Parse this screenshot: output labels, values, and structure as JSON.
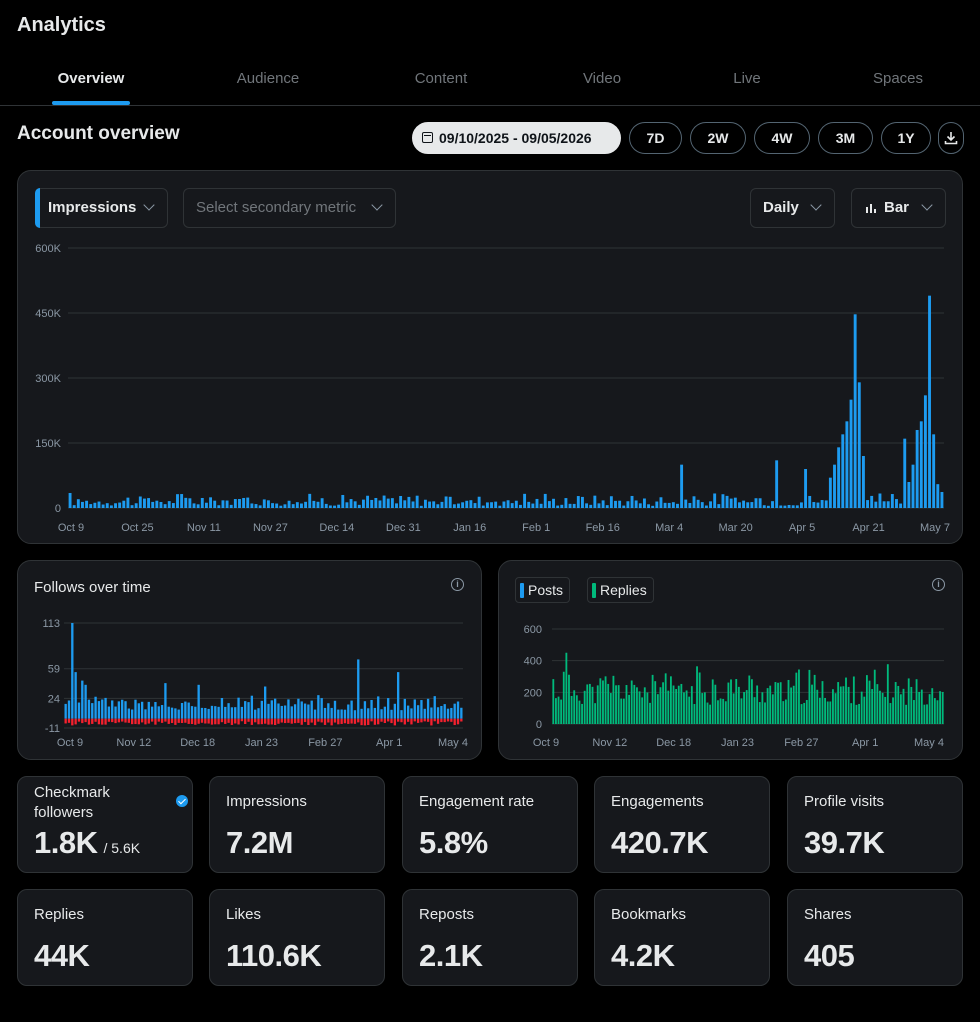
{
  "header": {
    "title": "Analytics"
  },
  "tabs": [
    {
      "label": "Overview",
      "active": true
    },
    {
      "label": "Audience",
      "active": false
    },
    {
      "label": "Content",
      "active": false
    },
    {
      "label": "Video",
      "active": false
    },
    {
      "label": "Live",
      "active": false
    },
    {
      "label": "Spaces",
      "active": false
    }
  ],
  "overview": {
    "title": "Account overview",
    "date_range": "09/10/2025 - 09/05/2026",
    "range_buttons": [
      "7D",
      "2W",
      "4W",
      "3M",
      "1Y"
    ],
    "download_icon": "download-icon"
  },
  "main_chart": {
    "primary_metric": "Impressions",
    "secondary_placeholder": "Select secondary metric",
    "granularity": "Daily",
    "chart_type_label": "Bar",
    "colors": {
      "bar": "#1d9bf0",
      "grid": "#2f3336",
      "tick": "#8b98a5"
    }
  },
  "follows_chart": {
    "title": "Follows over time",
    "colors": {
      "gain": "#1d9bf0",
      "loss": "#f4212e"
    }
  },
  "posts_chart": {
    "legend": [
      {
        "label": "Posts",
        "color": "#1d9bf0"
      },
      {
        "label": "Replies",
        "color": "#00ba7c"
      }
    ]
  },
  "metrics": [
    {
      "label": "Checkmark followers",
      "value": "1.8K",
      "sub": "/ 5.6K",
      "verified": true
    },
    {
      "label": "Impressions",
      "value": "7.2M"
    },
    {
      "label": "Engagement rate",
      "value": "5.8%"
    },
    {
      "label": "Engagements",
      "value": "420.7K"
    },
    {
      "label": "Profile visits",
      "value": "39.7K"
    },
    {
      "label": "Replies",
      "value": "44K"
    },
    {
      "label": "Likes",
      "value": "110.6K"
    },
    {
      "label": "Reposts",
      "value": "2.1K"
    },
    {
      "label": "Bookmarks",
      "value": "4.2K"
    },
    {
      "label": "Shares",
      "value": "405"
    }
  ],
  "chart_data": [
    {
      "type": "bar",
      "title": "",
      "series": [
        {
          "name": "Impressions",
          "color": "#1d9bf0"
        }
      ],
      "x_tick_labels": [
        "Oct 9",
        "Oct 25",
        "Nov 11",
        "Nov 27",
        "Dec 14",
        "Dec 31",
        "Jan 16",
        "Feb 1",
        "Feb 16",
        "Mar 4",
        "Mar 20",
        "Apr 5",
        "Apr 21",
        "May 7"
      ],
      "y_tick_labels": [
        "0",
        "150K",
        "300K",
        "450K",
        "600K"
      ],
      "ylim": [
        0,
        600000
      ],
      "grid": true,
      "highlights": [
        {
          "x": "Mar 10",
          "y": 100000
        },
        {
          "x": "Apr 13",
          "y": 447000
        },
        {
          "x": "Apr 14",
          "y": 290000
        },
        {
          "x": "Apr 29",
          "y": 260000
        },
        {
          "x": "May 1",
          "y": 490000
        }
      ],
      "baseline_range": [
        5000,
        40000
      ]
    },
    {
      "type": "bar",
      "title": "Follows over time",
      "series": [
        {
          "name": "Follows",
          "color": "#1d9bf0"
        },
        {
          "name": "Unfollows",
          "color": "#f4212e"
        }
      ],
      "x_tick_labels": [
        "Oct 9",
        "Nov 12",
        "Dec 18",
        "Jan 23",
        "Feb 27",
        "Apr 1",
        "May 4"
      ],
      "y_tick_labels": [
        "-11",
        "24",
        "59",
        "113"
      ],
      "ylim": [
        -11,
        113
      ],
      "grid": true,
      "highlights": [
        {
          "x": "Oct 11",
          "y": 113
        },
        {
          "x": "Mar 30",
          "y": 70
        },
        {
          "x": "Apr 26",
          "y": 55
        }
      ],
      "baseline_range": [
        10,
        25
      ],
      "unfollow_range": [
        -3,
        -8
      ]
    },
    {
      "type": "bar",
      "title": "",
      "series": [
        {
          "name": "Posts",
          "color": "#1d9bf0"
        },
        {
          "name": "Replies",
          "color": "#00ba7c"
        }
      ],
      "x_tick_labels": [
        "Oct 9",
        "Nov 12",
        "Dec 18",
        "Jan 23",
        "Feb 27",
        "Apr 1",
        "May 4"
      ],
      "y_tick_labels": [
        "0",
        "200",
        "400",
        "600"
      ],
      "ylim": [
        0,
        600
      ],
      "grid": true,
      "highlights": [
        {
          "x": "Oct 19",
          "y": 450
        }
      ],
      "baseline_range": [
        120,
        340
      ]
    }
  ]
}
